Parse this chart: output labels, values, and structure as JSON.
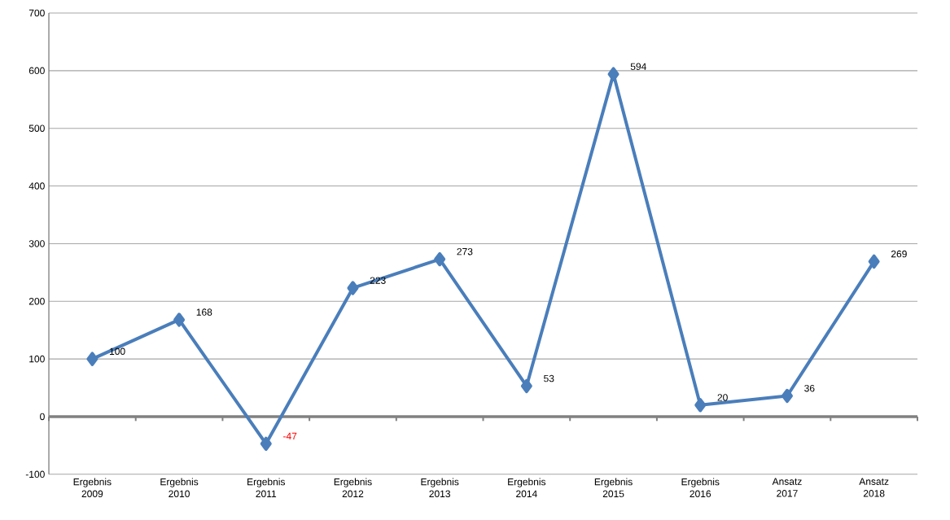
{
  "chart_data": {
    "type": "line",
    "categories": [
      "Ergebnis 2009",
      "Ergebnis 2010",
      "Ergebnis 2011",
      "Ergebnis 2012",
      "Ergebnis 2013",
      "Ergebnis 2014",
      "Ergebnis 2015",
      "Ergebnis 2016",
      "Ansatz 2017",
      "Ansatz 2018"
    ],
    "series": [
      {
        "color": "#4a7ebb",
        "values": [
          100,
          168,
          -47,
          223,
          273,
          53,
          594,
          20,
          36,
          269
        ]
      }
    ],
    "ylim": [
      -100,
      700
    ],
    "yticks": [
      -100,
      0,
      100,
      200,
      300,
      400,
      500,
      600,
      700
    ],
    "grid": "y",
    "marker": "diamond",
    "line_style": "solid",
    "data_labels": true
  }
}
